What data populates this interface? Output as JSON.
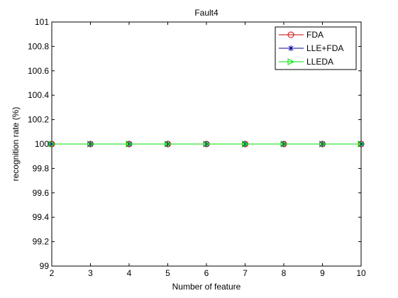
{
  "chart_data": {
    "type": "line",
    "title": "Fault4",
    "xlabel": "Number of feature",
    "ylabel": "recognition rate (%)",
    "xlim": [
      2,
      10
    ],
    "ylim": [
      99,
      101
    ],
    "x_ticks": [
      2,
      3,
      4,
      5,
      6,
      7,
      8,
      9,
      10
    ],
    "y_ticks": [
      "99",
      "99.2",
      "99.4",
      "99.6",
      "99.8",
      "100",
      "100.2",
      "100.4",
      "100.6",
      "100.8",
      "101"
    ],
    "grid": false,
    "legend_position": "top-right",
    "x": [
      2,
      3,
      4,
      5,
      6,
      7,
      8,
      9,
      10
    ],
    "series": [
      {
        "name": "FDA",
        "color": "#cc0000",
        "marker": "circle",
        "values": [
          100,
          100,
          100,
          100,
          100,
          100,
          100,
          100,
          100
        ]
      },
      {
        "name": "LLE+FDA",
        "color": "#000099",
        "marker": "star",
        "values": [
          100,
          100,
          100,
          100,
          100,
          100,
          100,
          100,
          100
        ]
      },
      {
        "name": "LLEDA",
        "color": "#00dd00",
        "marker": "triangle-right",
        "values": [
          100,
          100,
          100,
          100,
          100,
          100,
          100,
          100,
          100
        ]
      }
    ]
  }
}
